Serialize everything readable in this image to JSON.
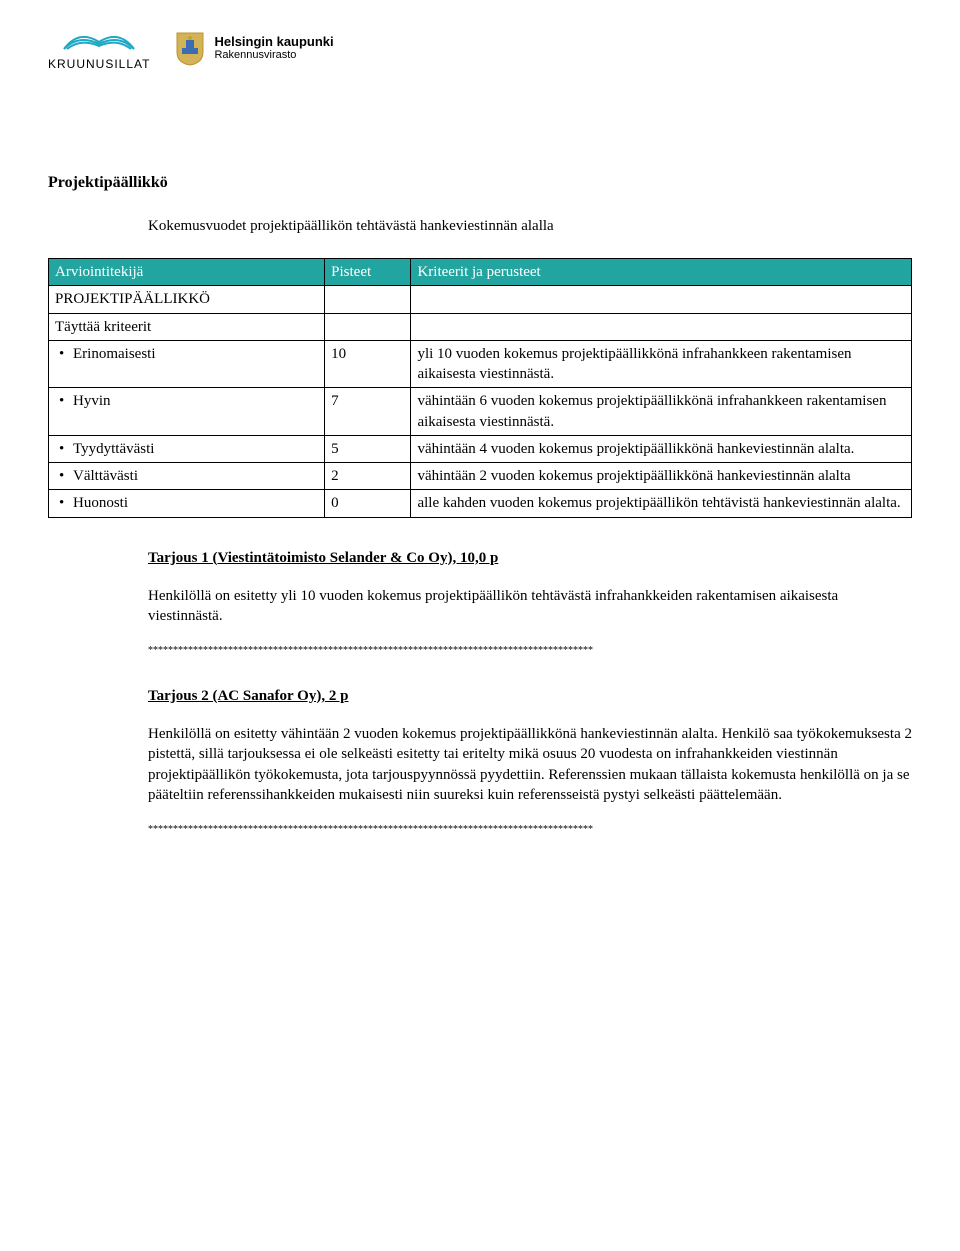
{
  "logos": {
    "kruunusillat_label": "KRUUNUSILLAT",
    "helsinki_line1": "Helsingin kaupunki",
    "helsinki_line2": "Rakennusvirasto"
  },
  "section_title": "Projektipäällikkö",
  "subtitle": "Kokemusvuodet projektipäällikön tehtävästä hankeviestinnän alalla",
  "table": {
    "header_bg": "#22a5a0",
    "header_color": "#ffffff",
    "columns": [
      "Arviointitekijä",
      "Pisteet",
      "Kriteerit ja perusteet"
    ],
    "rows": [
      {
        "label": "PROJEKTIPÄÄLLIKKÖ",
        "points": "",
        "criteria": "",
        "bullet": false
      },
      {
        "label": "Täyttää kriteerit",
        "points": "",
        "criteria": "",
        "bullet": false
      },
      {
        "label": "Erinomaisesti",
        "points": "10",
        "criteria": "yli 10 vuoden kokemus projektipäällikkönä infrahankkeen rakentamisen aikaisesta viestinnästä.",
        "bullet": true
      },
      {
        "label": "Hyvin",
        "points": "7",
        "criteria": "vähintään 6 vuoden kokemus projektipäällikkönä infrahankkeen rakentamisen aikaisesta viestinnästä.",
        "bullet": true
      },
      {
        "label": "Tyydyttävästi",
        "points": "5",
        "criteria": "vähintään 4 vuoden kokemus projektipäällikkönä hankeviestinnän alalta.",
        "bullet": true
      },
      {
        "label": "Välttävästi",
        "points": "2",
        "criteria": "vähintään 2 vuoden kokemus projektipäällikkönä hankeviestinnän alalta",
        "bullet": true
      },
      {
        "label": "Huonosti",
        "points": "0",
        "criteria": "alle kahden vuoden kokemus projektipäällikön tehtävistä hankeviestinnän alalta.",
        "bullet": true
      }
    ]
  },
  "tarjous1": {
    "heading": "Tarjous 1 (Viestintätoimisto Selander & Co Oy), 10,0 p",
    "body": "Henkilöllä on esitetty yli 10 vuoden kokemus projektipäällikön tehtävästä infrahankkeiden rakentamisen aikaisesta viestinnästä."
  },
  "tarjous2": {
    "heading": "Tarjous 2 (AC Sanafor Oy), 2 p",
    "body": "Henkilöllä on esitetty vähintään 2 vuoden kokemus projektipäällikkönä hankeviestinnän alalta. Henkilö saa työkokemuksesta 2 pistettä, sillä tarjouksessa ei ole selkeästi esitetty tai eritelty mikä osuus 20 vuodesta on infrahankkeiden viestinnän projektipäällikön työkokemusta, jota tarjouspyynnössä pyydettiin. Referenssien mukaan tällaista kokemusta henkilöllä on ja se pääteltiin referenssihankkeiden mukaisesti niin suureksi kuin referensseistä pystyi selkeästi päättelemään."
  },
  "separator": "*****************************************************************************************"
}
